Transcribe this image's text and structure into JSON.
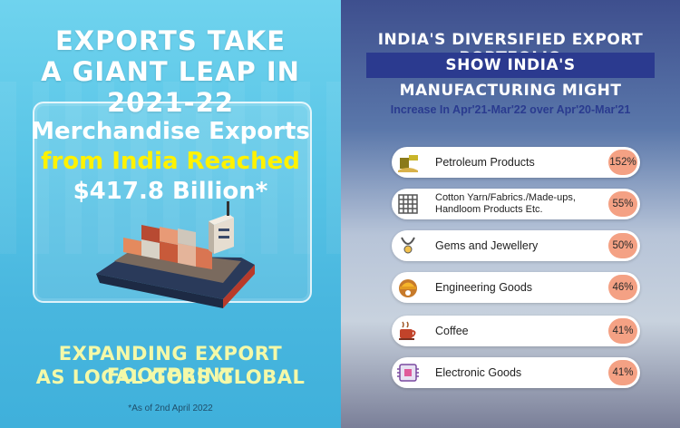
{
  "left": {
    "title_line1": "EXPORTS TAKE",
    "title_line2": "A GIANT LEAP IN 2021-22",
    "card_line1": "Merchandise Exports",
    "card_line2": "from India Reached",
    "card_line3": "$417.8 Billion*",
    "footer_line1": "EXPANDING EXPORT FOOTPRINT",
    "footer_line2": "AS LOCAL GOES GLOBAL",
    "note": "*As of 2nd April 2022"
  },
  "right": {
    "title": "INDIA'S DIVERSIFIED EXPORT PORTFOLIO",
    "banner": "SHOW INDIA'S MANUFACTURING MIGHT",
    "subtitle": "Increase In Apr'21-Mar'22 over Apr'20-Mar'21",
    "items": [
      {
        "label": "Petroleum Products",
        "value": "152%",
        "icon": "petroleum-icon"
      },
      {
        "label_line1": "Cotton Yarn/Fabrics./Made-ups,",
        "label_line2": "Handloom Products Etc.",
        "value": "55%",
        "icon": "fabric-icon"
      },
      {
        "label": "Gems and Jewellery",
        "value": "50%",
        "icon": "necklace-icon"
      },
      {
        "label": "Engineering Goods",
        "value": "46%",
        "icon": "hardhat-gear-icon"
      },
      {
        "label": "Coffee",
        "value": "41%",
        "icon": "coffee-icon"
      },
      {
        "label": "Electronic Goods",
        "value": "41%",
        "icon": "circuit-icon"
      }
    ]
  },
  "colors": {
    "left_bg": "#58c4e6",
    "highlight_yellow": "#fff200",
    "banner_blue": "#2b3a8f",
    "badge_salmon": "#f4a184"
  }
}
